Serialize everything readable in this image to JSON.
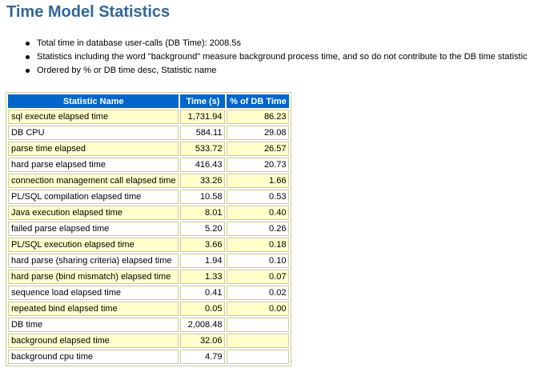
{
  "page": {
    "title": "Time Model Statistics"
  },
  "notes": [
    "Total time in database user-calls (DB Time): 2008.5s",
    "Statistics including the word \"background\" measure background process time, and so do not contribute to the DB time statistic",
    "Ordered by % or DB time desc, Statistic name"
  ],
  "table": {
    "headers": [
      "Statistic Name",
      "Time (s)",
      "% of DB Time"
    ],
    "rows": [
      {
        "name": "sql execute elapsed time",
        "time": "1,731.94",
        "pct": "86.23"
      },
      {
        "name": "DB CPU",
        "time": "584.11",
        "pct": "29.08"
      },
      {
        "name": "parse time elapsed",
        "time": "533.72",
        "pct": "26.57"
      },
      {
        "name": "hard parse elapsed time",
        "time": "416.43",
        "pct": "20.73"
      },
      {
        "name": "connection management call elapsed time",
        "time": "33.26",
        "pct": "1.66"
      },
      {
        "name": "PL/SQL compilation elapsed time",
        "time": "10.58",
        "pct": "0.53"
      },
      {
        "name": "Java execution elapsed time",
        "time": "8.01",
        "pct": "0.40"
      },
      {
        "name": "failed parse elapsed time",
        "time": "5.20",
        "pct": "0.26"
      },
      {
        "name": "PL/SQL execution elapsed time",
        "time": "3.66",
        "pct": "0.18"
      },
      {
        "name": "hard parse (sharing criteria) elapsed time",
        "time": "1.94",
        "pct": "0.10"
      },
      {
        "name": "hard parse (bind mismatch) elapsed time",
        "time": "1.33",
        "pct": "0.07"
      },
      {
        "name": "sequence load elapsed time",
        "time": "0.41",
        "pct": "0.02"
      },
      {
        "name": "repeated bind elapsed time",
        "time": "0.05",
        "pct": "0.00"
      },
      {
        "name": "DB time",
        "time": "2,008.48",
        "pct": ""
      },
      {
        "name": "background elapsed time",
        "time": "32.06",
        "pct": ""
      },
      {
        "name": "background cpu time",
        "time": "4.79",
        "pct": ""
      }
    ]
  },
  "colors": {
    "title": "#336699",
    "header_bg": "#0066cc",
    "header_text": "#ffffff",
    "row_alt": "#ffffcc",
    "row_plain": "#ffffff",
    "border": "#cccc99"
  }
}
